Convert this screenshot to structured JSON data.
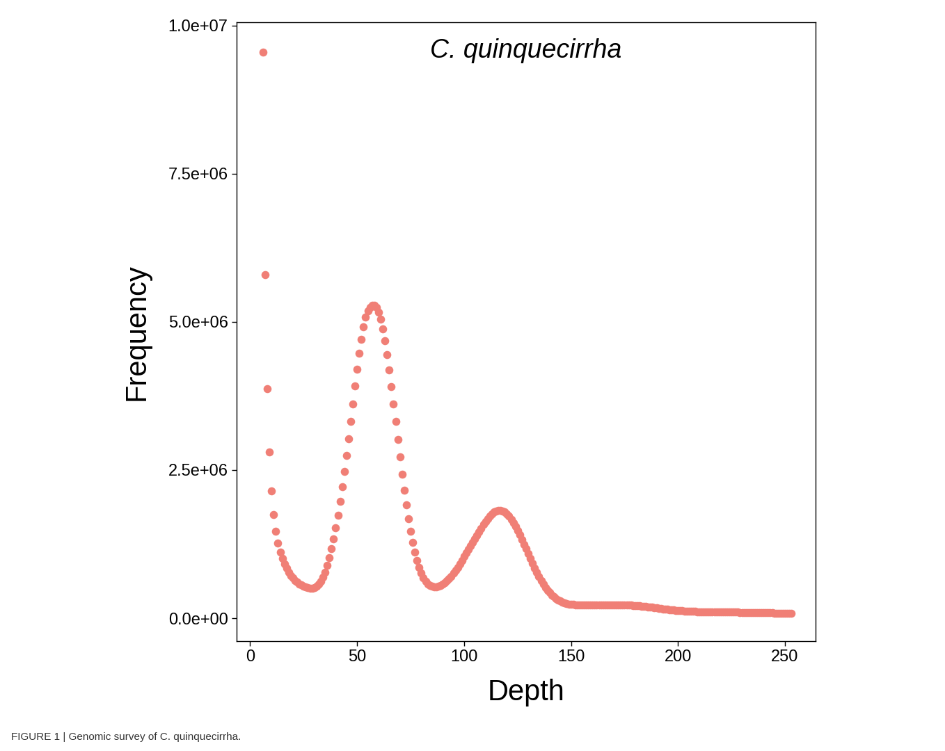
{
  "chart_data": {
    "type": "scatter",
    "title": "C. quinquecirrha",
    "x_label": "Depth",
    "y_label": "Frequency",
    "caption": "FIGURE 1 | Genomic survey of C. quinquecirrha.",
    "color": "#f07f76",
    "marker": "o",
    "grid": false,
    "xlim": [
      -6.5,
      264.3
    ],
    "ylim": [
      -390000,
      10050000
    ],
    "xticks": [
      0,
      50,
      100,
      150,
      200,
      250
    ],
    "yticks": [
      {
        "value": 0,
        "label": "0.0e+00"
      },
      {
        "value": 2500000,
        "label": "2.5e+06"
      },
      {
        "value": 5000000,
        "label": "5.0e+06"
      },
      {
        "value": 7500000,
        "label": "7.5e+06"
      },
      {
        "value": 10000000,
        "label": "1.0e+07"
      }
    ],
    "x": [
      6,
      7,
      8,
      9,
      10,
      11,
      12,
      13,
      14,
      15,
      16,
      17,
      18,
      19,
      20,
      21,
      22,
      23,
      24,
      25,
      26,
      27,
      28,
      29,
      30,
      31,
      32,
      33,
      34,
      35,
      36,
      37,
      38,
      39,
      40,
      41,
      42,
      43,
      44,
      45,
      46,
      47,
      48,
      49,
      50,
      51,
      52,
      53,
      54,
      55,
      56,
      57,
      58,
      59,
      60,
      61,
      62,
      63,
      64,
      65,
      66,
      67,
      68,
      69,
      70,
      71,
      72,
      73,
      74,
      75,
      76,
      77,
      78,
      79,
      80,
      81,
      82,
      83,
      84,
      85,
      86,
      87,
      88,
      89,
      90,
      91,
      92,
      93,
      94,
      95,
      96,
      97,
      98,
      99,
      100,
      101,
      102,
      103,
      104,
      105,
      106,
      107,
      108,
      109,
      110,
      111,
      112,
      113,
      114,
      115,
      116,
      117,
      118,
      119,
      120,
      121,
      122,
      123,
      124,
      125,
      126,
      127,
      128,
      129,
      130,
      131,
      132,
      133,
      134,
      135,
      136,
      137,
      138,
      139,
      140,
      141,
      142,
      143,
      144,
      145,
      146,
      147,
      148,
      149,
      150,
      151,
      152,
      153,
      154,
      155,
      156,
      157,
      158,
      159,
      160,
      161,
      162,
      163,
      164,
      165,
      166,
      167,
      168,
      169,
      170,
      171,
      172,
      173,
      174,
      175,
      176,
      177,
      178,
      179,
      180,
      181,
      182,
      183,
      184,
      185,
      186,
      187,
      188,
      189,
      190,
      191,
      192,
      193,
      194,
      195,
      196,
      197,
      198,
      199,
      200,
      201,
      202,
      203,
      204,
      205,
      206,
      207,
      208,
      209,
      210,
      211,
      212,
      213,
      214,
      215,
      216,
      217,
      218,
      219,
      220,
      221,
      222,
      223,
      224,
      225,
      226,
      227,
      228,
      229,
      230,
      231,
      232,
      233,
      234,
      235,
      236,
      237,
      238,
      239,
      240,
      241,
      242,
      243,
      244,
      245,
      246,
      247,
      248,
      249,
      250,
      251,
      252,
      253
    ],
    "values": [
      9550000.0,
      5800000.0,
      3870000.0,
      2800000.0,
      2150000.0,
      1750000.0,
      1470000.0,
      1270000.0,
      1120000.0,
      1010000.0,
      920000.0,
      840000.0,
      780000.0,
      720000.0,
      680000.0,
      640000.0,
      610000.0,
      580000.0,
      560000.0,
      540000.0,
      530000.0,
      520000.0,
      510000.0,
      510000.0,
      520000.0,
      540000.0,
      570000.0,
      620000.0,
      690000.0,
      780000.0,
      890000.0,
      1020000.0,
      1170000.0,
      1340000.0,
      1530000.0,
      1740000.0,
      1970000.0,
      2220000.0,
      2480000.0,
      2750000.0,
      3030000.0,
      3320000.0,
      3620000.0,
      3920000.0,
      4200000.0,
      4470000.0,
      4710000.0,
      4920000.0,
      5080000.0,
      5190000.0,
      5250000.0,
      5280000.0,
      5280000.0,
      5240000.0,
      5160000.0,
      5040000.0,
      4880000.0,
      4680000.0,
      4450000.0,
      4190000.0,
      3910000.0,
      3620000.0,
      3320000.0,
      3020000.0,
      2720000.0,
      2430000.0,
      2160000.0,
      1910000.0,
      1680000.0,
      1470000.0,
      1280000.0,
      1120000.0,
      980000.0,
      860000.0,
      760000.0,
      680000.0,
      620000.0,
      580000.0,
      550000.0,
      540000.0,
      530000.0,
      530000.0,
      540000.0,
      550000.0,
      570000.0,
      600000.0,
      630000.0,
      670000.0,
      710000.0,
      760000.0,
      810000.0,
      860000.0,
      920000.0,
      980000.0,
      1040000.0,
      1100000.0,
      1160000.0,
      1220000.0,
      1280000.0,
      1340000.0,
      1400000.0,
      1460000.0,
      1520000.0,
      1580000.0,
      1630000.0,
      1680000.0,
      1720000.0,
      1760000.0,
      1790000.0,
      1810000.0,
      1820000.0,
      1820000.0,
      1810000.0,
      1790000.0,
      1760000.0,
      1720000.0,
      1670000.0,
      1610000.0,
      1550000.0,
      1480000.0,
      1410000.0,
      1330000.0,
      1250000.0,
      1170000.0,
      1090000.0,
      1010000.0,
      930000.0,
      850000.0,
      780000.0,
      710000.0,
      640000.0,
      580000.0,
      520000.0,
      470000.0,
      430000.0,
      390000.0,
      360000.0,
      330000.0,
      310000.0,
      290000.0,
      270000.0,
      260000.0,
      250000.0,
      240000.0,
      235000.0,
      230000.0,
      227000.0,
      225000.0,
      223000.0,
      222000.0,
      221000.0,
      220000.0,
      220000.0,
      220000.0,
      220000.0,
      220000.0,
      220000.0,
      221000.0,
      221000.0,
      222000.0,
      222000.0,
      223000.0,
      223000.0,
      224000.0,
      224000.0,
      224000.0,
      224000.0,
      224000.0,
      224000.0,
      223000.0,
      222000.0,
      221000.0,
      219000.0,
      217000.0,
      215000.0,
      212000.0,
      209000.0,
      205000.0,
      201000.0,
      197000.0,
      193000.0,
      188000.0,
      183000.0,
      178000.0,
      173000.0,
      168000.0,
      163000.0,
      158000.0,
      154000.0,
      150000.0,
      146000.0,
      142000.0,
      138000.0,
      135000.0,
      132000.0,
      129000.0,
      126000.0,
      123000.0,
      121000.0,
      119000.0,
      117000.0,
      115000.0,
      113000.0,
      112000.0,
      111000.0,
      110000.0,
      109000.0,
      108000.0,
      107000.0,
      106000.0,
      105000.0,
      104000.0,
      104000.0,
      103000.0,
      103000.0,
      103000.0,
      102000.0,
      102000.0,
      102000.0,
      102000.0,
      101000.0,
      101000.0,
      101000.0,
      100000.0,
      100000.0,
      100000.0,
      99000.0,
      99000.0,
      98000.0,
      98000.0,
      97000.0,
      96000.0,
      95000.0,
      94000.0,
      93000.0,
      92000.0,
      91000.0,
      90000.0,
      89000.0,
      88000.0,
      87000.0,
      86000.0,
      85000.0,
      84000.0,
      83000.0,
      82000.0,
      81000.0,
      80000.0
    ]
  }
}
